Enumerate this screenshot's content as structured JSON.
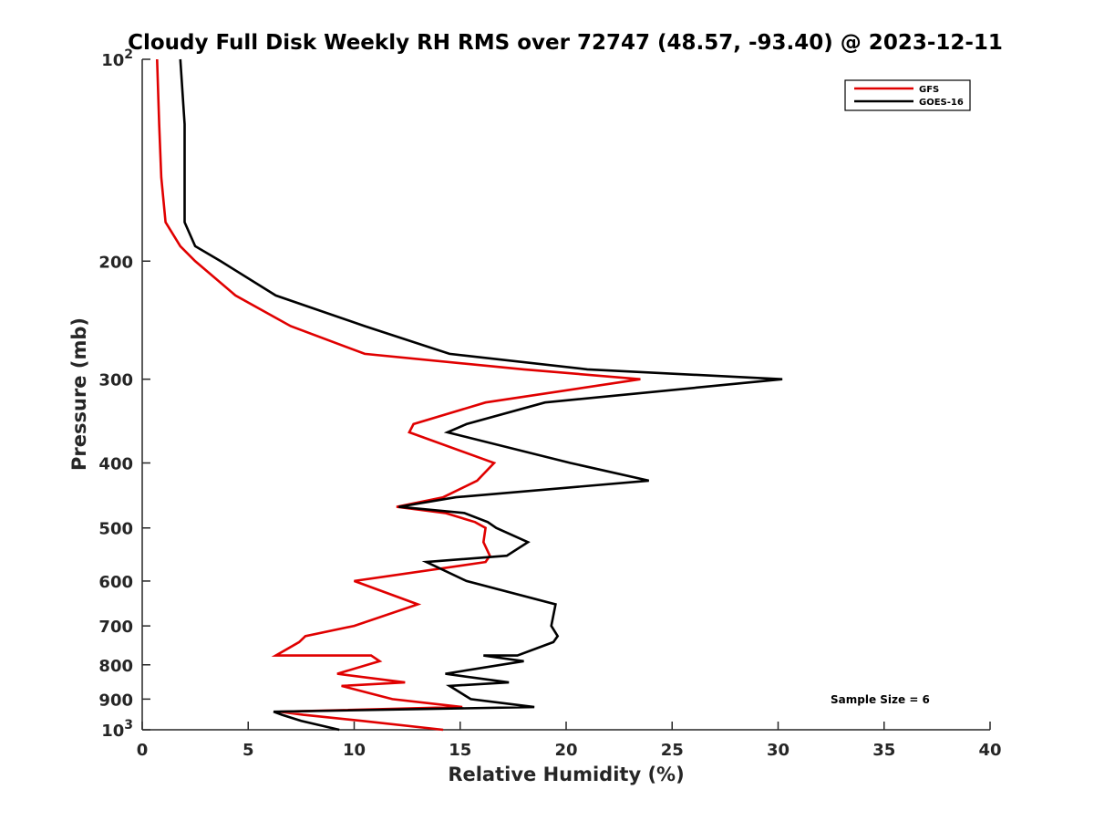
{
  "chart_data": {
    "type": "line",
    "title": "Cloudy Full Disk Weekly RH RMS over 72747 (48.57, -93.40) @ 2023-12-11",
    "xlabel": "Relative Humidity (%)",
    "ylabel": "Pressure (mb)",
    "xlim": [
      0,
      40
    ],
    "ylim": [
      100,
      1000
    ],
    "yscale": "log",
    "y_reversed": true,
    "grid": false,
    "legend_position": "top-right",
    "x_ticks": [
      "0",
      "5",
      "10",
      "15",
      "20",
      "25",
      "30",
      "35",
      "40"
    ],
    "y_ticks": [
      {
        "value": 100,
        "base": "10",
        "exp": "2"
      },
      {
        "value": 200,
        "label": "200"
      },
      {
        "value": 300,
        "label": "300"
      },
      {
        "value": 400,
        "label": "400"
      },
      {
        "value": 500,
        "label": "500"
      },
      {
        "value": 600,
        "label": "600"
      },
      {
        "value": 700,
        "label": "700"
      },
      {
        "value": 800,
        "label": "800"
      },
      {
        "value": 900,
        "label": "900"
      },
      {
        "value": 1000,
        "base": "10",
        "exp": "3"
      }
    ],
    "annotation": "Sample Size = 6",
    "series": [
      {
        "name": "GFS",
        "color": "#e00000",
        "points": [
          [
            0.7,
            100
          ],
          [
            0.8,
            125
          ],
          [
            0.9,
            150
          ],
          [
            1.1,
            175
          ],
          [
            1.8,
            190
          ],
          [
            2.5,
            200
          ],
          [
            4.4,
            225
          ],
          [
            7.0,
            250
          ],
          [
            10.5,
            275
          ],
          [
            18.0,
            290
          ],
          [
            23.5,
            300
          ],
          [
            16.2,
            325
          ],
          [
            12.8,
            350
          ],
          [
            12.6,
            360
          ],
          [
            16.6,
            400
          ],
          [
            15.8,
            425
          ],
          [
            14.2,
            450
          ],
          [
            12.0,
            465
          ],
          [
            14.3,
            475
          ],
          [
            15.7,
            490
          ],
          [
            16.2,
            500
          ],
          [
            16.1,
            525
          ],
          [
            16.4,
            550
          ],
          [
            16.2,
            562
          ],
          [
            10.0,
            600
          ],
          [
            13.0,
            650
          ],
          [
            10.0,
            700
          ],
          [
            7.7,
            725
          ],
          [
            7.4,
            740
          ],
          [
            6.3,
            775
          ],
          [
            10.8,
            775
          ],
          [
            11.2,
            790
          ],
          [
            9.2,
            825
          ],
          [
            12.4,
            850
          ],
          [
            9.4,
            860
          ],
          [
            11.8,
            900
          ],
          [
            15.1,
            925
          ],
          [
            6.5,
            940
          ],
          [
            7.6,
            950
          ],
          [
            10.4,
            970
          ],
          [
            14.2,
            1000
          ]
        ]
      },
      {
        "name": "GOES-16",
        "color": "#000000",
        "points": [
          [
            1.8,
            100
          ],
          [
            2.0,
            125
          ],
          [
            2.0,
            150
          ],
          [
            2.0,
            175
          ],
          [
            2.5,
            190
          ],
          [
            3.7,
            200
          ],
          [
            6.3,
            225
          ],
          [
            10.5,
            250
          ],
          [
            14.5,
            275
          ],
          [
            21.0,
            290
          ],
          [
            30.2,
            300
          ],
          [
            19.0,
            325
          ],
          [
            15.3,
            350
          ],
          [
            14.4,
            360
          ],
          [
            20.2,
            400
          ],
          [
            23.9,
            425
          ],
          [
            14.8,
            450
          ],
          [
            12.1,
            465
          ],
          [
            15.2,
            475
          ],
          [
            16.3,
            490
          ],
          [
            16.7,
            500
          ],
          [
            18.2,
            525
          ],
          [
            17.2,
            550
          ],
          [
            13.4,
            562
          ],
          [
            15.3,
            600
          ],
          [
            19.5,
            650
          ],
          [
            19.3,
            700
          ],
          [
            19.6,
            725
          ],
          [
            19.4,
            740
          ],
          [
            17.7,
            775
          ],
          [
            16.1,
            775
          ],
          [
            18.0,
            790
          ],
          [
            14.3,
            825
          ],
          [
            17.3,
            850
          ],
          [
            14.5,
            860
          ],
          [
            15.5,
            900
          ],
          [
            18.5,
            925
          ],
          [
            6.2,
            940
          ],
          [
            6.6,
            950
          ],
          [
            7.5,
            970
          ],
          [
            9.3,
            1000
          ]
        ]
      }
    ]
  }
}
